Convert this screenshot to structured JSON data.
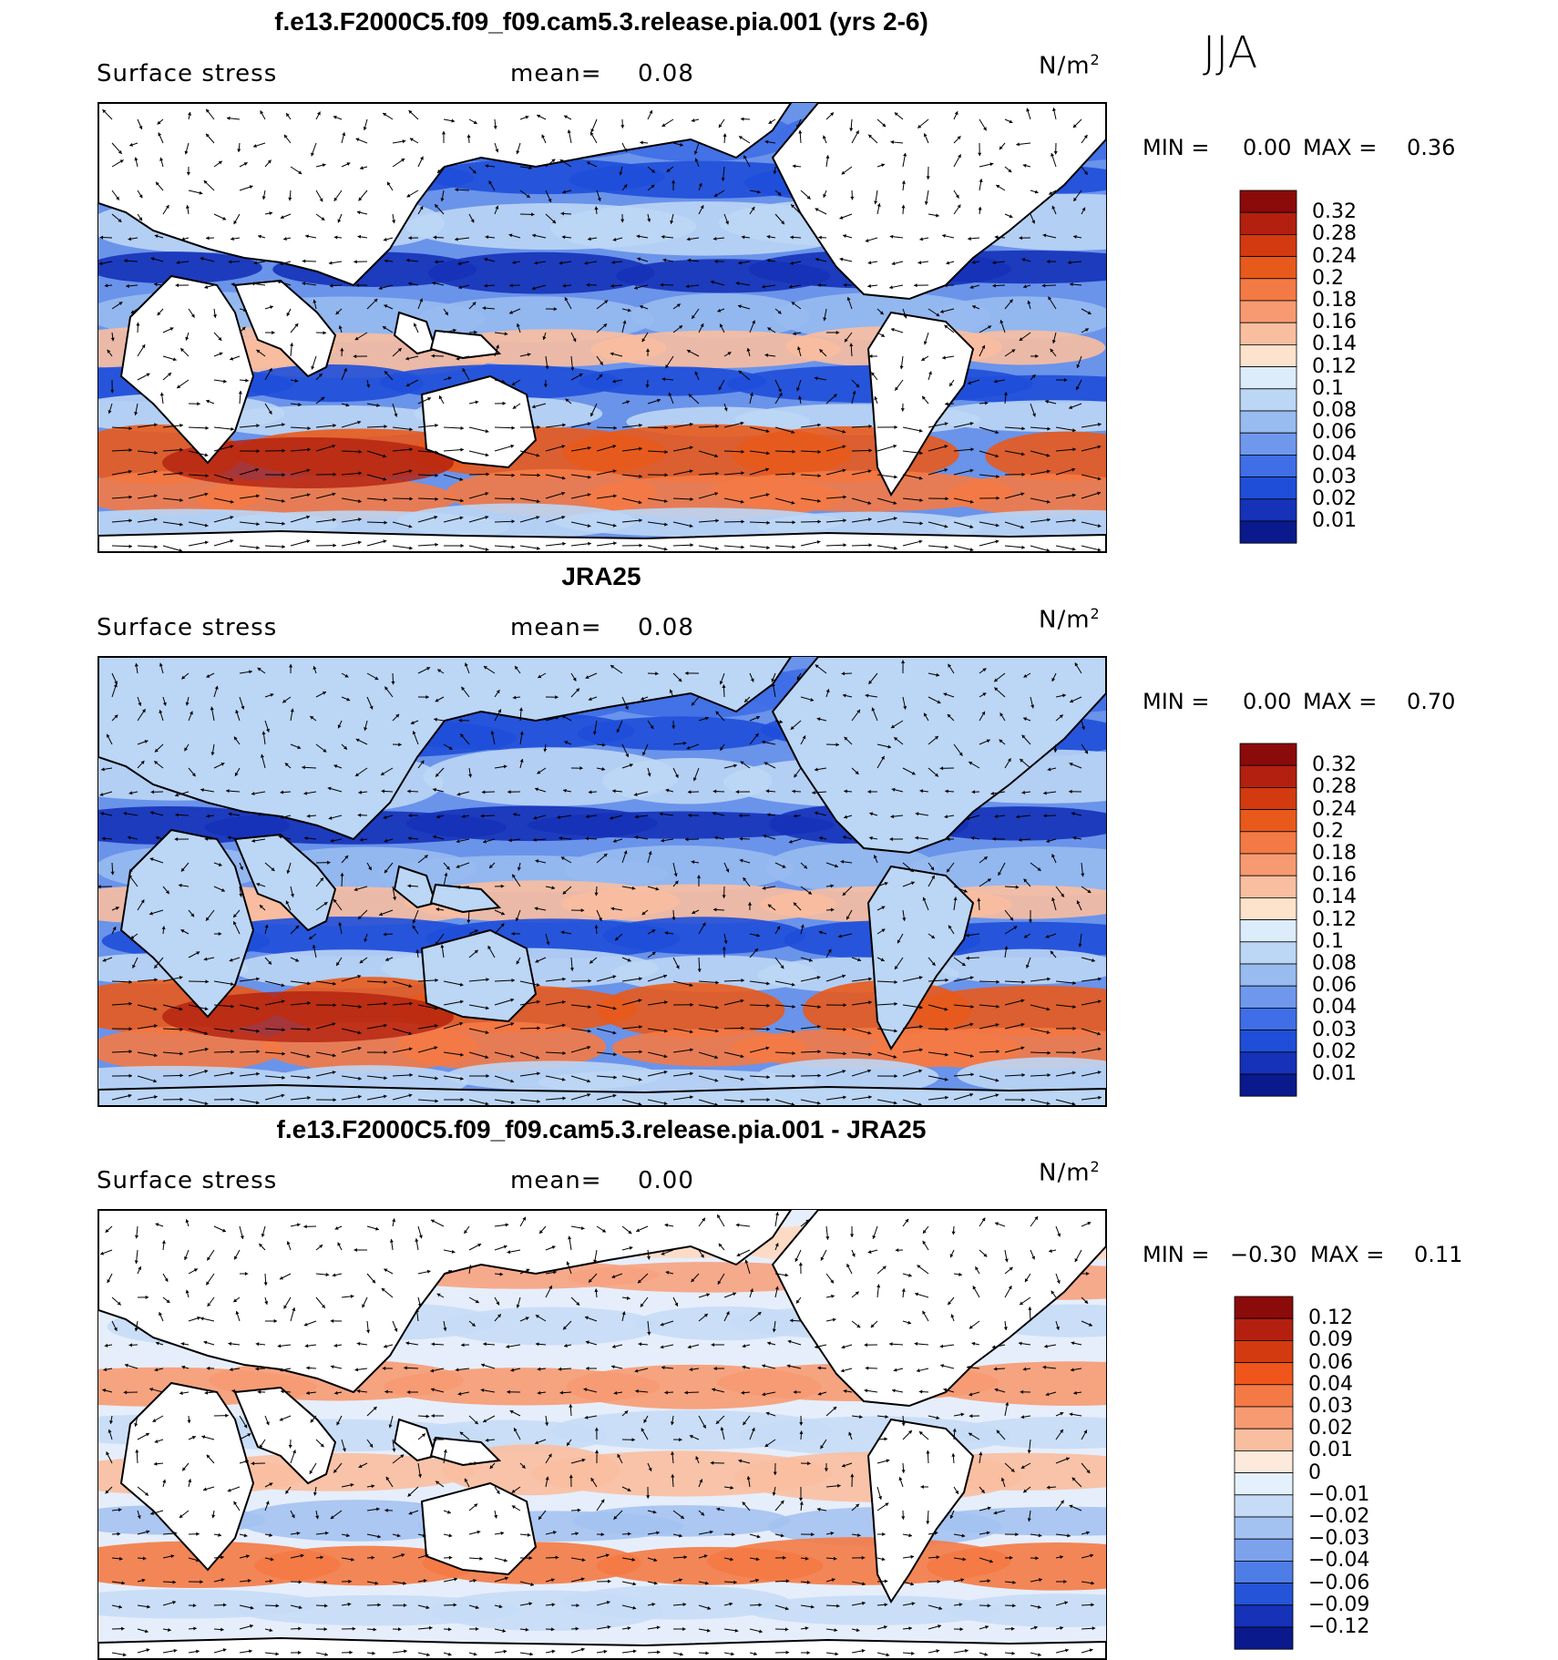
{
  "season": "JJA",
  "panels": [
    {
      "title": "f.e13.F2000C5.f09_f09.cam5.3.release.pia.001 (yrs 2-6)",
      "variable": "Surface stress",
      "mean_label": "mean=",
      "mean_value": "0.08",
      "units": "N/m",
      "units_sup": "2",
      "min_label": "MIN =",
      "min_value": "0.00",
      "max_label": "MAX =",
      "max_value": "0.36",
      "colorbar": {
        "levels": [
          "0.32",
          "0.28",
          "0.24",
          "0.2",
          "0.18",
          "0.16",
          "0.14",
          "0.12",
          "0.1",
          "0.08",
          "0.06",
          "0.04",
          "0.03",
          "0.02",
          "0.01"
        ],
        "colors": [
          "#8b0a0a",
          "#b3200f",
          "#d43a10",
          "#e85a1c",
          "#f47a45",
          "#f79a72",
          "#f9bea0",
          "#fde2cc",
          "#dcecfa",
          "#bcd6f5",
          "#98bbf0",
          "#6f98ec",
          "#3f6ee6",
          "#1f4fd9",
          "#1532b8",
          "#0a1a8c"
        ]
      },
      "theme": "abs"
    },
    {
      "title": "JRA25",
      "variable": "Surface stress",
      "mean_label": "mean=",
      "mean_value": "0.08",
      "units": "N/m",
      "units_sup": "2",
      "min_label": "MIN =",
      "min_value": "0.00",
      "max_label": "MAX =",
      "max_value": "0.70",
      "colorbar": {
        "levels": [
          "0.32",
          "0.28",
          "0.24",
          "0.2",
          "0.18",
          "0.16",
          "0.14",
          "0.12",
          "0.1",
          "0.08",
          "0.06",
          "0.04",
          "0.03",
          "0.02",
          "0.01"
        ],
        "colors": [
          "#8b0a0a",
          "#b3200f",
          "#d43a10",
          "#e85a1c",
          "#f47a45",
          "#f79a72",
          "#f9bea0",
          "#fde2cc",
          "#dcecfa",
          "#bcd6f5",
          "#98bbf0",
          "#6f98ec",
          "#3f6ee6",
          "#1f4fd9",
          "#1532b8",
          "#0a1a8c"
        ]
      },
      "theme": "abs"
    },
    {
      "title": "f.e13.F2000C5.f09_f09.cam5.3.release.pia.001 - JRA25",
      "variable": "Surface stress",
      "mean_label": "mean=",
      "mean_value": "0.00",
      "units": "N/m",
      "units_sup": "2",
      "min_label": "MIN =",
      "min_value": "−0.30",
      "max_label": "MAX =",
      "max_value": "0.11",
      "colorbar": {
        "levels": [
          "0.12",
          "0.09",
          "0.06",
          "0.04",
          "0.03",
          "0.02",
          "0.01",
          "0",
          "−0.01",
          "−0.02",
          "−0.03",
          "−0.04",
          "−0.06",
          "−0.09",
          "−0.12"
        ],
        "colors": [
          "#8b0a0a",
          "#b3200f",
          "#d43a10",
          "#f0551c",
          "#f47a45",
          "#f79a72",
          "#f9bea0",
          "#fdeadc",
          "#e4f0fb",
          "#c6dbf6",
          "#a4c2f1",
          "#7da2ec",
          "#4f7de6",
          "#2554d8",
          "#1532b8",
          "#0a1a8c"
        ]
      },
      "theme": "diff"
    }
  ]
}
